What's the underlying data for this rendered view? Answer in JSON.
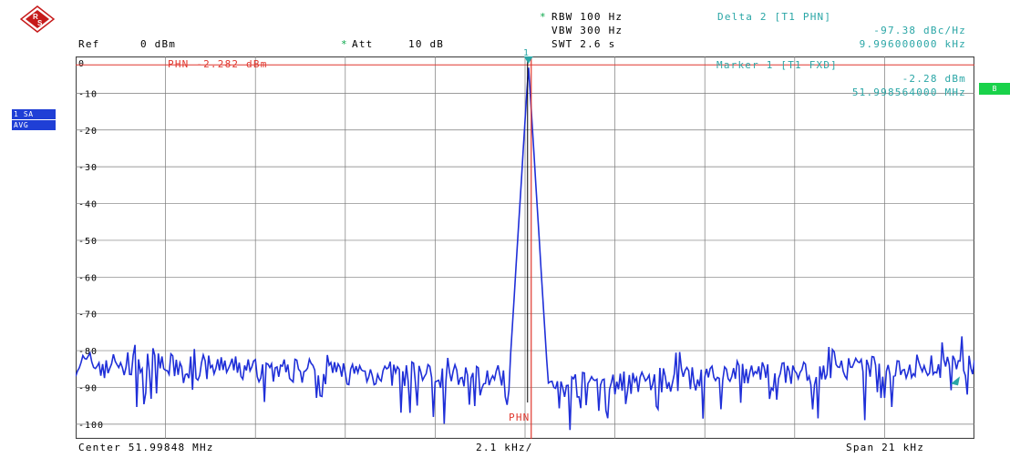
{
  "header": {
    "ref_label": "Ref",
    "ref_value": "0 dBm",
    "att_mark": "*",
    "att_label": "Att",
    "att_value": "10 dB",
    "rbw_mark": "*",
    "rbw": "RBW 100 Hz",
    "vbw": "VBW 300 Hz",
    "swt": "SWT 2.6 s"
  },
  "delta_marker": {
    "title": "Delta 2 [T1 PHN]",
    "level": "-97.38 dBc/Hz",
    "frequency": "9.996000000 kHz"
  },
  "marker1": {
    "title": "Marker 1 [T1 FXD]",
    "level": "-2.28 dBm",
    "frequency": "51.998564000 MHz",
    "number": "1"
  },
  "phn_line": {
    "label": "PHN -2.282 dBm",
    "bottom_label": "PHN"
  },
  "side_badges": {
    "trace": "1 SA",
    "detector": "AVG",
    "b_tag": "B"
  },
  "footer": {
    "center": "Center 51.99848 MHz",
    "div": "2.1 kHz/",
    "span": "Span 21 kHz"
  },
  "colors": {
    "trace": "#1f2fd8",
    "grid": "#7a7a7a",
    "phn": "#e0372e",
    "marker_text": "#2aa6a6",
    "badge": "#1f3fd6",
    "b_tag": "#19d24a",
    "logo": "#c61a1a"
  },
  "chart_data": {
    "type": "line",
    "xlabel": "",
    "ylabel": "",
    "y_ticks": [
      "0",
      "-10",
      "-20",
      "-30",
      "-40",
      "-50",
      "-60",
      "-70",
      "-80",
      "-90",
      "-100"
    ],
    "ylim": [
      -104,
      0
    ],
    "x_center_mhz": 51.99848,
    "x_span_khz": 21,
    "x_divisions": 10,
    "noise_floor_dbm": [
      -85,
      -97
    ],
    "peak": {
      "offset_khz": 0.08,
      "level_dbm": -2.28
    },
    "phn_reference_dbm": -2.282,
    "grid": true
  }
}
